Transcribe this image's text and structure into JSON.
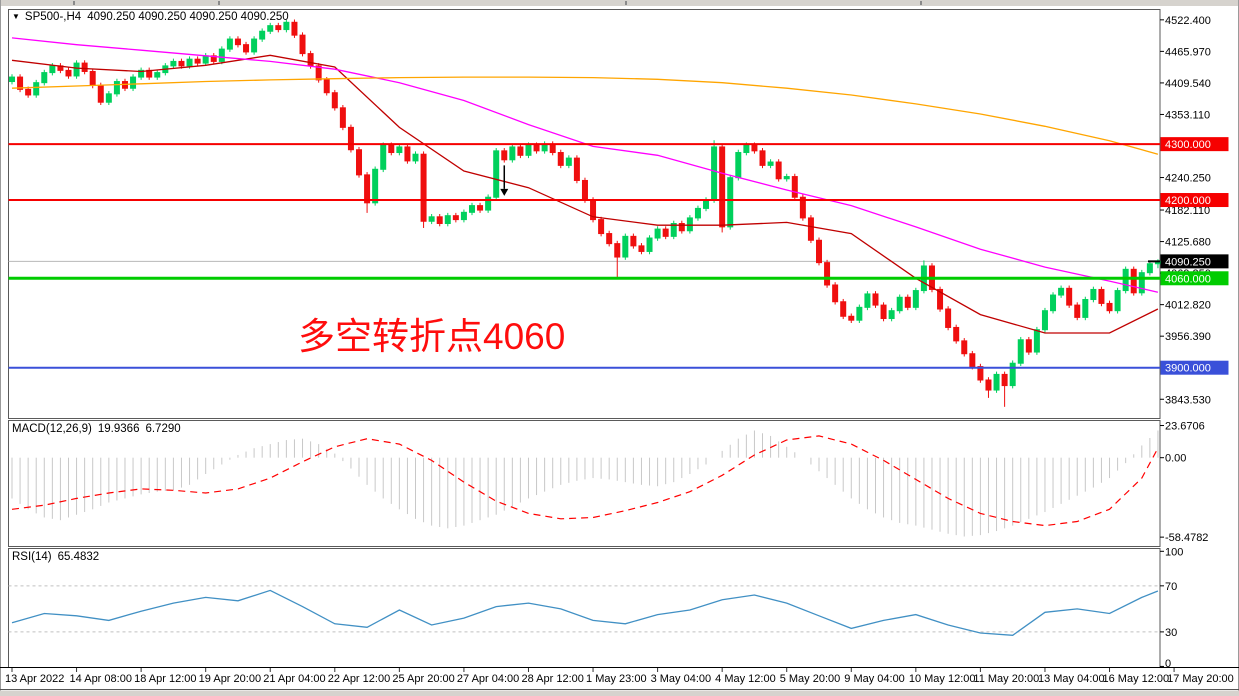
{
  "time_axis": {
    "labels": [
      "13 Apr 2022",
      "14 Apr 08:00",
      "18 Apr 12:00",
      "19 Apr 20:00",
      "21 Apr 04:00",
      "22 Apr 12:00",
      "25 Apr 20:00",
      "27 Apr 04:00",
      "28 Apr 12:00",
      "1 May 23:00",
      "3 May 04:00",
      "4 May 12:00",
      "5 May 20:00",
      "9 May 04:00",
      "10 May 12:00",
      "11 May 20:00",
      "13 May 04:00",
      "16 May 12:00",
      "17 May 20:00"
    ],
    "bars_per_label": 8
  },
  "chart_data": [
    {
      "type": "candlestick",
      "name": "main-price-panel",
      "symbol": "SP500-,H4",
      "dropdown_icon": "▼",
      "quotes_text": "4090.250 4090.250 4090.250 4090.250",
      "ylim": [
        3810,
        4540
      ],
      "y_ticks": [
        {
          "v": 4522.4,
          "label": "4522.400"
        },
        {
          "v": 4465.97,
          "label": "4465.970"
        },
        {
          "v": 4409.54,
          "label": "4409.540"
        },
        {
          "v": 4353.11,
          "label": "4353.110"
        },
        {
          "v": 4240.25,
          "label": "4240.250"
        },
        {
          "v": 4182.11,
          "label": "4182.110"
        },
        {
          "v": 4125.68,
          "label": "4125.680"
        },
        {
          "v": 4069.25,
          "label": "4069.250"
        },
        {
          "v": 4012.82,
          "label": "4012.820"
        },
        {
          "v": 3956.39,
          "label": "3956.390"
        },
        {
          "v": 3843.53,
          "label": "3843.530"
        }
      ],
      "levels": [
        {
          "value": 4300,
          "label": "4300.000",
          "color": "#f60000",
          "width": 2
        },
        {
          "value": 4200,
          "label": "4200.000",
          "color": "#f60000",
          "width": 2
        },
        {
          "value": 4060,
          "label": "4060.000",
          "color": "#00cc00",
          "width": 3
        },
        {
          "value": 3900,
          "label": "3900.000",
          "color": "#3a50d9",
          "width": 2
        }
      ],
      "current_price": {
        "value": 4090.25,
        "label": "4090.250",
        "line_color": "#b8b8b8",
        "badge_color": "#000000"
      },
      "bull_color": "#00d05c",
      "bear_color": "#ef0f0f",
      "candles": [
        [
          4412,
          4425,
          4407,
          4420
        ],
        [
          4420,
          4425,
          4393,
          4398
        ],
        [
          4398,
          4403,
          4383,
          4388
        ],
        [
          4388,
          4415,
          4383,
          4410
        ],
        [
          4410,
          4433,
          4405,
          4428
        ],
        [
          4428,
          4445,
          4423,
          4440
        ],
        [
          4440,
          4445,
          4427,
          4432
        ],
        [
          4432,
          4437,
          4417,
          4422
        ],
        [
          4422,
          4450,
          4417,
          4445
        ],
        [
          4445,
          4450,
          4425,
          4430
        ],
        [
          4430,
          4435,
          4400,
          4405
        ],
        [
          4405,
          4410,
          4370,
          4375
        ],
        [
          4375,
          4395,
          4370,
          4390
        ],
        [
          4390,
          4417,
          4385,
          4412
        ],
        [
          4412,
          4417,
          4395,
          4400
        ],
        [
          4400,
          4425,
          4395,
          4420
        ],
        [
          4420,
          4437,
          4415,
          4432
        ],
        [
          4432,
          4437,
          4415,
          4420
        ],
        [
          4420,
          4433,
          4415,
          4428
        ],
        [
          4428,
          4445,
          4423,
          4440
        ],
        [
          4440,
          4453,
          4435,
          4448
        ],
        [
          4448,
          4453,
          4435,
          4440
        ],
        [
          4440,
          4457,
          4435,
          4452
        ],
        [
          4452,
          4457,
          4440,
          4445
        ],
        [
          4445,
          4463,
          4440,
          4458
        ],
        [
          4458,
          4463,
          4443,
          4448
        ],
        [
          4448,
          4475,
          4443,
          4470
        ],
        [
          4470,
          4493,
          4465,
          4488
        ],
        [
          4488,
          4493,
          4473,
          4478
        ],
        [
          4478,
          4483,
          4460,
          4465
        ],
        [
          4465,
          4493,
          4460,
          4488
        ],
        [
          4488,
          4507,
          4483,
          4502
        ],
        [
          4502,
          4517,
          4497,
          4512
        ],
        [
          4512,
          4517,
          4500,
          4505
        ],
        [
          4505,
          4522,
          4500,
          4518
        ],
        [
          4518,
          4523,
          4490,
          4495
        ],
        [
          4495,
          4500,
          4457,
          4462
        ],
        [
          4462,
          4467,
          4435,
          4440
        ],
        [
          4440,
          4445,
          4410,
          4415
        ],
        [
          4415,
          4420,
          4387,
          4392
        ],
        [
          4392,
          4397,
          4360,
          4365
        ],
        [
          4365,
          4370,
          4325,
          4330
        ],
        [
          4330,
          4335,
          4285,
          4290
        ],
        [
          4290,
          4295,
          4240,
          4245
        ],
        [
          4245,
          4250,
          4177,
          4195
        ],
        [
          4195,
          4260,
          4190,
          4255
        ],
        [
          4255,
          4303,
          4250,
          4298
        ],
        [
          4298,
          4303,
          4280,
          4285
        ],
        [
          4285,
          4300,
          4280,
          4295
        ],
        [
          4295,
          4300,
          4265,
          4270
        ],
        [
          4270,
          4287,
          4265,
          4282
        ],
        [
          4282,
          4287,
          4150,
          4162
        ],
        [
          4162,
          4175,
          4157,
          4170
        ],
        [
          4170,
          4175,
          4153,
          4158
        ],
        [
          4158,
          4177,
          4153,
          4172
        ],
        [
          4172,
          4177,
          4160,
          4165
        ],
        [
          4165,
          4183,
          4160,
          4178
        ],
        [
          4178,
          4195,
          4173,
          4190
        ],
        [
          4190,
          4195,
          4177,
          4182
        ],
        [
          4182,
          4210,
          4177,
          4205
        ],
        [
          4205,
          4293,
          4200,
          4288
        ],
        [
          4288,
          4293,
          4267,
          4272
        ],
        [
          4272,
          4300,
          4267,
          4295
        ],
        [
          4295,
          4300,
          4275,
          4280
        ],
        [
          4280,
          4303,
          4275,
          4298
        ],
        [
          4298,
          4303,
          4283,
          4288
        ],
        [
          4288,
          4305,
          4283,
          4300
        ],
        [
          4300,
          4305,
          4280,
          4285
        ],
        [
          4285,
          4290,
          4257,
          4262
        ],
        [
          4262,
          4280,
          4257,
          4275
        ],
        [
          4275,
          4280,
          4230,
          4235
        ],
        [
          4235,
          4240,
          4195,
          4200
        ],
        [
          4200,
          4205,
          4160,
          4165
        ],
        [
          4165,
          4170,
          4135,
          4140
        ],
        [
          4140,
          4145,
          4117,
          4122
        ],
        [
          4122,
          4127,
          4062,
          4098
        ],
        [
          4098,
          4140,
          4093,
          4135
        ],
        [
          4135,
          4140,
          4113,
          4118
        ],
        [
          4118,
          4123,
          4103,
          4108
        ],
        [
          4108,
          4137,
          4103,
          4132
        ],
        [
          4132,
          4153,
          4127,
          4148
        ],
        [
          4148,
          4153,
          4130,
          4135
        ],
        [
          4135,
          4163,
          4130,
          4158
        ],
        [
          4158,
          4163,
          4140,
          4145
        ],
        [
          4145,
          4173,
          4140,
          4168
        ],
        [
          4168,
          4190,
          4163,
          4185
        ],
        [
          4185,
          4205,
          4180,
          4200
        ],
        [
          4200,
          4307,
          4195,
          4295
        ],
        [
          4295,
          4300,
          4142,
          4152
        ],
        [
          4152,
          4245,
          4147,
          4240
        ],
        [
          4240,
          4290,
          4235,
          4285
        ],
        [
          4285,
          4303,
          4280,
          4298
        ],
        [
          4298,
          4303,
          4283,
          4288
        ],
        [
          4288,
          4293,
          4257,
          4262
        ],
        [
          4262,
          4273,
          4257,
          4268
        ],
        [
          4268,
          4273,
          4233,
          4238
        ],
        [
          4238,
          4247,
          4233,
          4242
        ],
        [
          4242,
          4247,
          4200,
          4205
        ],
        [
          4205,
          4210,
          4163,
          4168
        ],
        [
          4168,
          4173,
          4123,
          4128
        ],
        [
          4128,
          4133,
          4083,
          4088
        ],
        [
          4088,
          4093,
          4043,
          4048
        ],
        [
          4048,
          4053,
          4013,
          4018
        ],
        [
          4018,
          4023,
          3987,
          3992
        ],
        [
          3992,
          3997,
          3980,
          3985
        ],
        [
          3985,
          4013,
          3980,
          4008
        ],
        [
          4008,
          4037,
          4003,
          4032
        ],
        [
          4032,
          4037,
          4007,
          4012
        ],
        [
          4012,
          4017,
          3983,
          3988
        ],
        [
          3988,
          4007,
          3983,
          4002
        ],
        [
          4002,
          4031,
          3997,
          4026
        ],
        [
          4026,
          4031,
          4003,
          4008
        ],
        [
          4008,
          4043,
          4003,
          4038
        ],
        [
          4038,
          4092,
          4033,
          4082
        ],
        [
          4082,
          4087,
          4035,
          4040
        ],
        [
          4040,
          4045,
          4000,
          4005
        ],
        [
          4005,
          4010,
          3967,
          3972
        ],
        [
          3972,
          3977,
          3943,
          3948
        ],
        [
          3948,
          3953,
          3920,
          3925
        ],
        [
          3925,
          3930,
          3897,
          3902
        ],
        [
          3902,
          3907,
          3873,
          3878
        ],
        [
          3878,
          3883,
          3846,
          3860
        ],
        [
          3860,
          3893,
          3855,
          3888
        ],
        [
          3888,
          3893,
          3830,
          3868
        ],
        [
          3868,
          3913,
          3863,
          3908
        ],
        [
          3908,
          3955,
          3903,
          3950
        ],
        [
          3950,
          3955,
          3923,
          3928
        ],
        [
          3928,
          3973,
          3923,
          3968
        ],
        [
          3968,
          4007,
          3963,
          4002
        ],
        [
          4002,
          4035,
          3997,
          4030
        ],
        [
          4030,
          4047,
          4025,
          4042
        ],
        [
          4042,
          4047,
          4007,
          4012
        ],
        [
          4012,
          4017,
          3985,
          3990
        ],
        [
          3990,
          4027,
          3985,
          4022
        ],
        [
          4022,
          4045,
          4017,
          4040
        ],
        [
          4040,
          4045,
          4010,
          4015
        ],
        [
          4015,
          4020,
          3997,
          4002
        ],
        [
          4002,
          4043,
          3997,
          4038
        ],
        [
          4038,
          4081,
          4033,
          4076
        ],
        [
          4076,
          4081,
          4029,
          4034
        ],
        [
          4034,
          4075,
          4029,
          4070
        ],
        [
          4070,
          4091,
          4065,
          4086
        ],
        [
          4086,
          4094,
          4078,
          4090.25
        ]
      ],
      "overlays": [
        {
          "name": "ma-fast",
          "color": "#c00000",
          "step": 8,
          "values": [
            4450,
            4436,
            4430,
            4441,
            4459,
            4438,
            4330,
            4252,
            4222,
            4170,
            4155,
            4155,
            4160,
            4140,
            4060,
            3995,
            3962,
            3962,
            4005
          ]
        },
        {
          "name": "ma-mid",
          "color": "#ff00ff",
          "step": 8,
          "values": [
            4490,
            4478,
            4468,
            4458,
            4448,
            4434,
            4410,
            4378,
            4335,
            4296,
            4280,
            4248,
            4218,
            4190,
            4152,
            4112,
            4080,
            4055,
            4035
          ]
        },
        {
          "name": "ma-slow",
          "color": "#ffa500",
          "step": 8,
          "values": [
            4400,
            4404,
            4408,
            4412,
            4415,
            4417,
            4419,
            4420,
            4420,
            4419,
            4416,
            4410,
            4400,
            4388,
            4372,
            4354,
            4332,
            4306,
            4282
          ]
        }
      ],
      "text_annotation": {
        "text": "多空转折点4060",
        "color": "#ff0d0d"
      },
      "arrow_annotation": {
        "bar": 61,
        "from_price": 4262,
        "to_price": 4220,
        "color": "#000000"
      }
    },
    {
      "type": "bar",
      "name": "macd-panel",
      "label": "MACD(12,26,9)",
      "value_main": "19.9366",
      "value_signal": "6.7290",
      "ylim": [
        -65,
        27
      ],
      "y_ticks": [
        {
          "v": 23.6706,
          "label": "23.6706"
        },
        {
          "v": 0,
          "label": "0.00"
        },
        {
          "v": -58.4782,
          "label": "-58.4782"
        }
      ],
      "hist_color": "#c8c8c8",
      "signal_color": "#ff0000",
      "hist_step": 2,
      "hist": [
        -30,
        -38,
        -44,
        -46,
        -42,
        -38,
        -33,
        -30,
        -27,
        -25,
        -24,
        -20,
        -12,
        -5,
        2,
        7,
        10,
        13,
        14,
        10,
        3,
        -8,
        -20,
        -30,
        -38,
        -45,
        -50,
        -52,
        -50,
        -46,
        -42,
        -36,
        -30,
        -25,
        -20,
        -17,
        -15,
        -16,
        -18,
        -20,
        -21,
        -18,
        -12,
        -5,
        5,
        14,
        20,
        16,
        8,
        0,
        -10,
        -20,
        -30,
        -38,
        -44,
        -48,
        -50,
        -53,
        -56,
        -58,
        -57,
        -54,
        -50,
        -45,
        -40,
        -34,
        -28,
        -22,
        -15,
        -4,
        9,
        20
      ],
      "signal_step": 4,
      "signal": [
        -38,
        -35,
        -30,
        -26,
        -23,
        -24,
        -26,
        -23,
        -15,
        -3,
        8,
        14,
        10,
        -2,
        -18,
        -32,
        -41,
        -45,
        -44,
        -39,
        -33,
        -25,
        -13,
        2,
        13,
        16,
        10,
        -2,
        -16,
        -30,
        -41,
        -47,
        -50,
        -47,
        -38,
        -15,
        7
      ]
    },
    {
      "type": "line",
      "name": "rsi-panel",
      "label": "RSI(14)",
      "value": "65.4832",
      "ylim": [
        -0.5,
        102
      ],
      "y_ticks": [
        {
          "v": 100,
          "label": "100"
        },
        {
          "v": 70,
          "label": "70"
        },
        {
          "v": 30,
          "label": "30"
        },
        {
          "v": 0,
          "label": "0"
        }
      ],
      "line_color": "#4190c4",
      "level_color": "#c0c0c0",
      "levels": [
        70,
        30
      ],
      "step": 4,
      "values": [
        38,
        46,
        44,
        40,
        48,
        55,
        60,
        57,
        66,
        52,
        37,
        34,
        49,
        36,
        42,
        52,
        55,
        50,
        40,
        37,
        45,
        49,
        58,
        62,
        55,
        44,
        33,
        40,
        45,
        36,
        29,
        27,
        47,
        50,
        46,
        60,
        65.48
      ]
    }
  ]
}
